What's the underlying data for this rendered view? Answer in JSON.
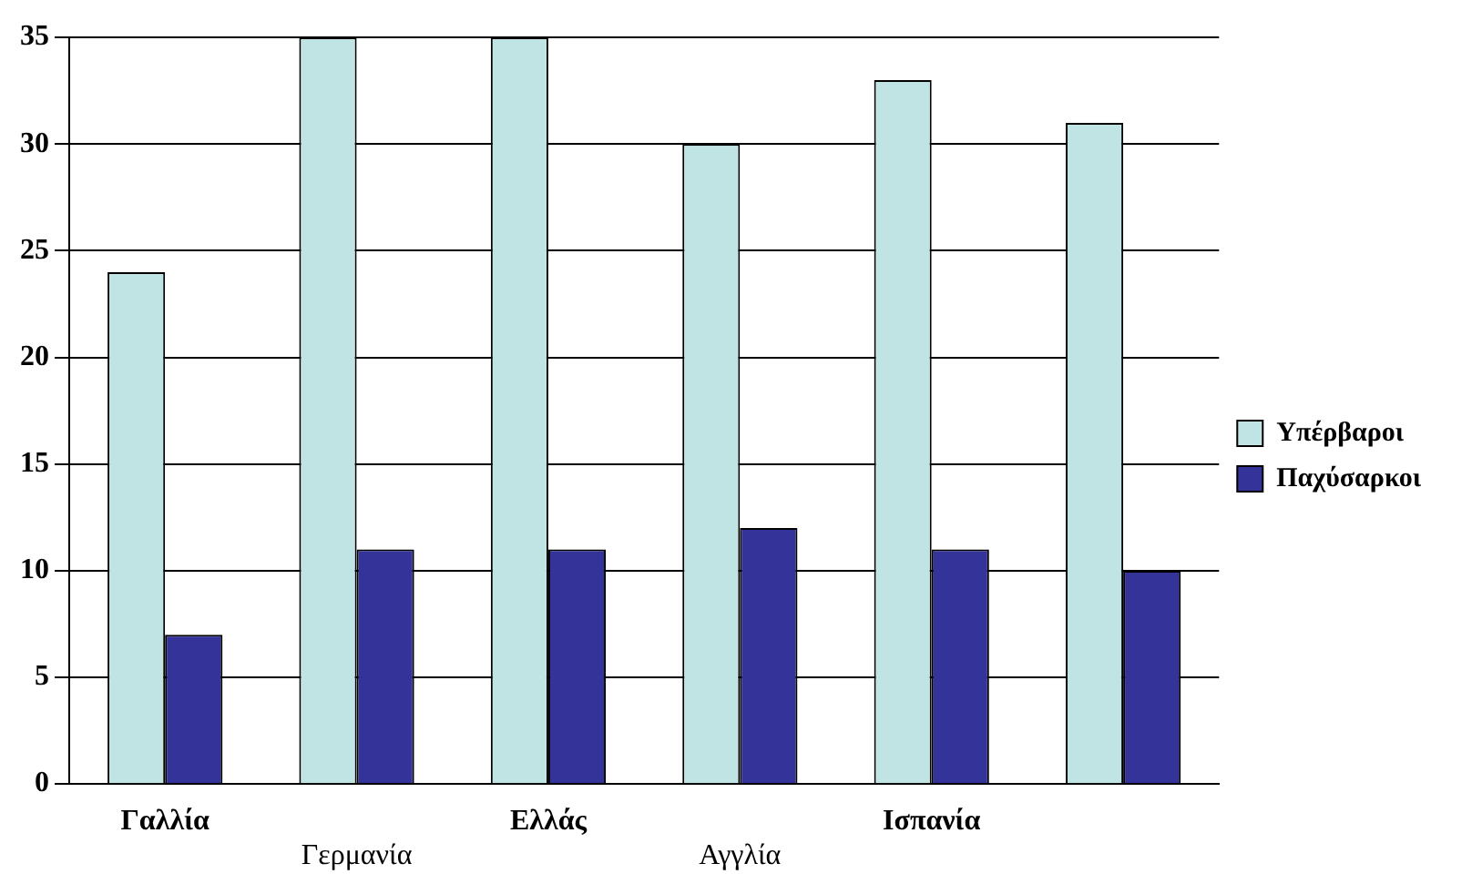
{
  "chart_data": {
    "type": "bar",
    "categories": [
      "Γαλλία",
      "Γερμανία",
      "Ελλάς",
      "Αγγλία",
      "Ισπανία",
      null
    ],
    "series": [
      {
        "name": "Υπέρβαροι",
        "color": "#c0e4e4",
        "values": [
          24,
          35,
          35,
          30,
          33,
          31
        ]
      },
      {
        "name": "Παχύσαρκοι",
        "color": "#333399",
        "values": [
          7,
          11,
          11,
          12,
          11,
          10
        ]
      }
    ],
    "ylim": [
      0,
      35
    ],
    "yticks": [
      0,
      5,
      10,
      15,
      20,
      25,
      30,
      35
    ],
    "grid": "y",
    "legend": "right"
  }
}
